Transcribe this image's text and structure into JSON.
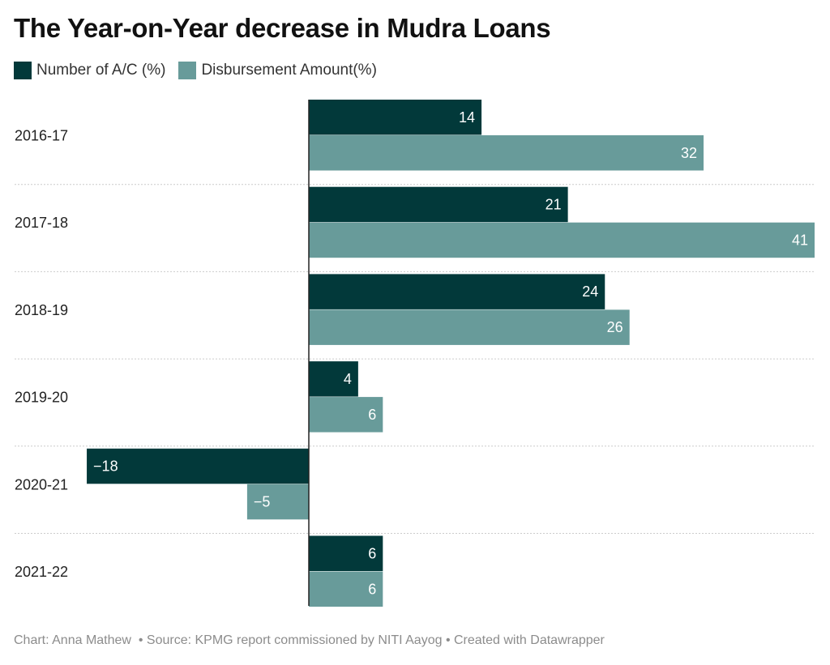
{
  "chart_data": {
    "type": "bar",
    "orientation": "horizontal",
    "title": "The Year-on-Year decrease in Mudra Loans",
    "categories": [
      "2016-17",
      "2017-18",
      "2018-19",
      "2019-20",
      "2020-21",
      "2021-22"
    ],
    "series": [
      {
        "name": "Number of A/C (%)",
        "color": "#02393a",
        "values": [
          14,
          21,
          24,
          4,
          -18,
          6
        ],
        "labels": [
          "14",
          "21",
          "24",
          "4",
          "−18",
          "6"
        ]
      },
      {
        "name": "Disbursement Amount(%)",
        "color": "#689b9a",
        "values": [
          32,
          41,
          26,
          6,
          -5,
          6
        ],
        "labels": [
          "32",
          "41",
          "26",
          "6",
          "−5",
          "6"
        ]
      }
    ],
    "xlim": [
      -18,
      41
    ],
    "legend": "top-left"
  },
  "footer": {
    "chart_by": "Chart: Anna Mathew",
    "source": "• Source: KPMG report commissioned by NITI Aayog",
    "created": "• Created with Datawrapper"
  }
}
